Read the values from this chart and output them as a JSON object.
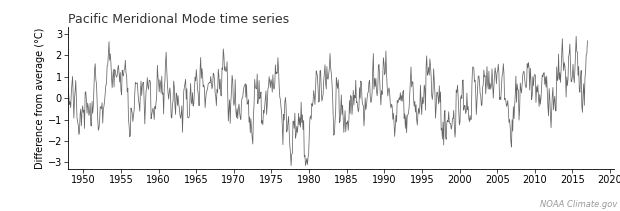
{
  "title": "Pacific Meridional Mode time series",
  "ylabel": "Difference from average (°C)",
  "attribution": "NOAA Climate.gov",
  "xlim": [
    1948.0,
    2020.5
  ],
  "ylim": [
    -3.3,
    3.3
  ],
  "yticks": [
    -3,
    -2,
    -1,
    0,
    1,
    2,
    3
  ],
  "xticks": [
    1950,
    1955,
    1960,
    1965,
    1970,
    1975,
    1980,
    1985,
    1990,
    1995,
    2000,
    2005,
    2010,
    2015,
    2020
  ],
  "line_color": "#666666",
  "line_width": 0.55,
  "background_color": "#ffffff",
  "title_fontsize": 9,
  "axis_fontsize": 7,
  "tick_fontsize": 7
}
